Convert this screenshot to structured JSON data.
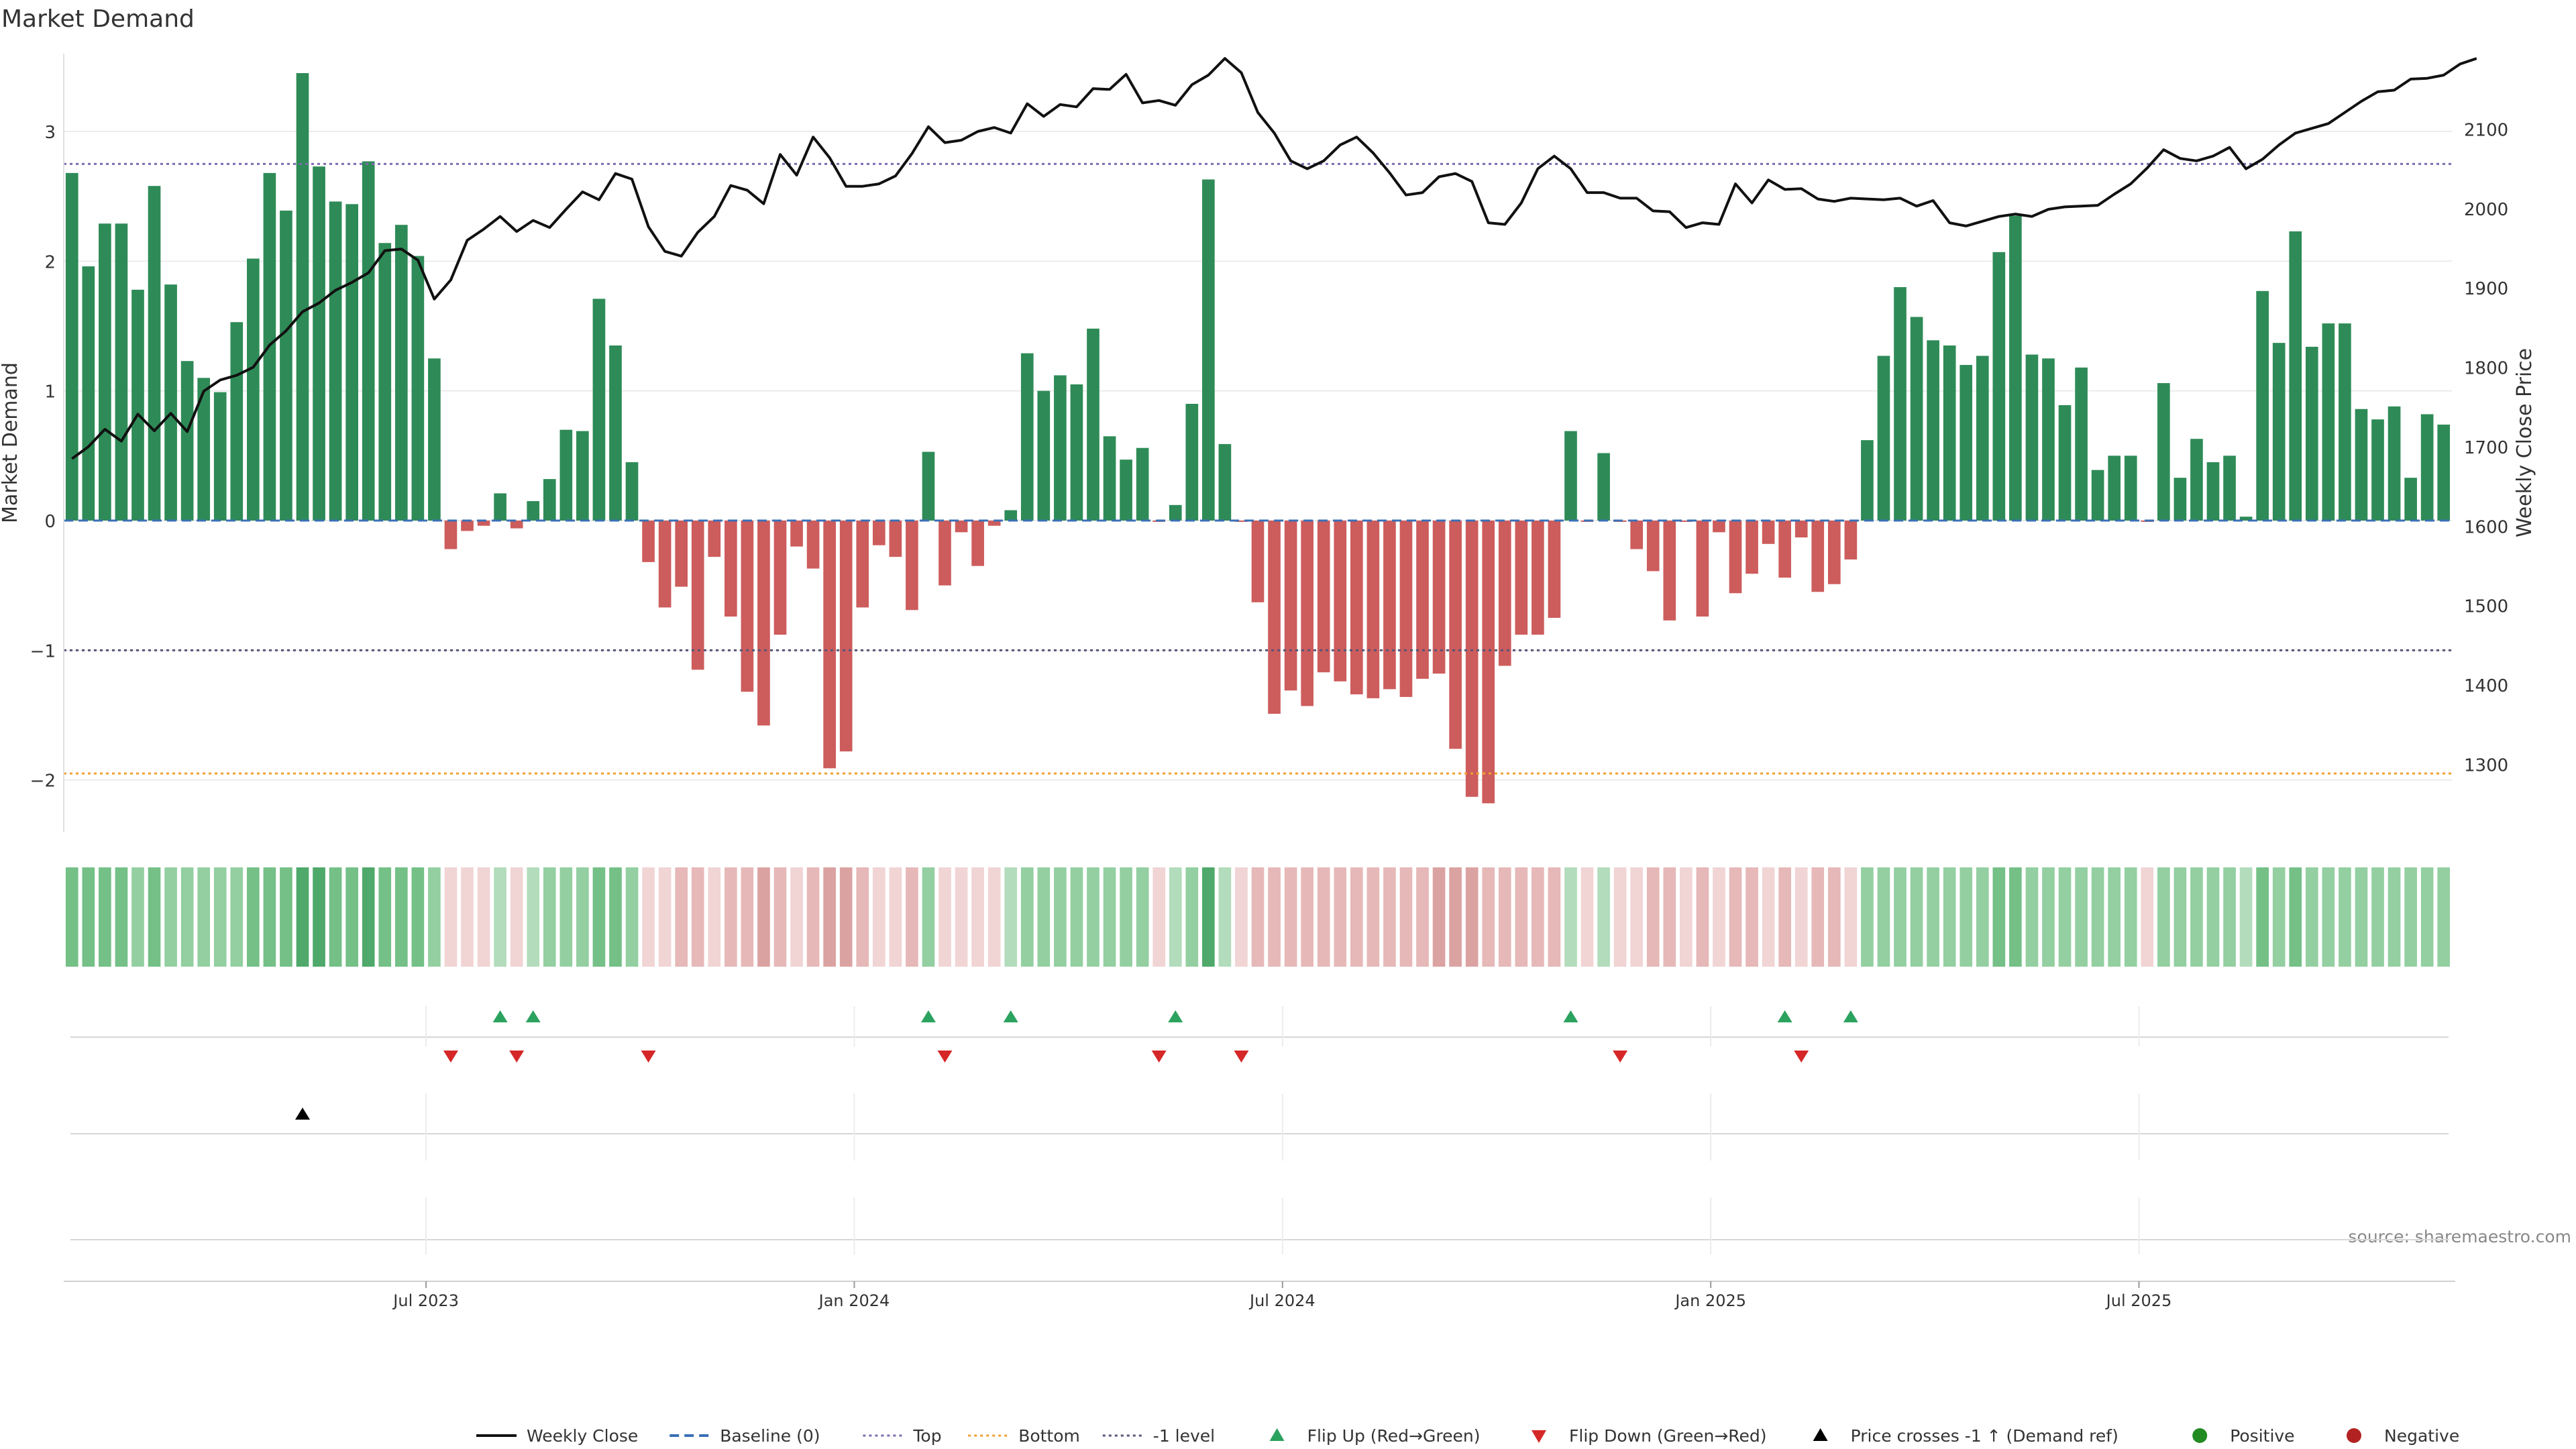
{
  "title": "Market Demand",
  "source": "source: sharemaestro.com",
  "colors": {
    "positive": "#2e8b57",
    "negative": "#cd5c5c",
    "close": "#111111",
    "baseline": "#3b6fb6",
    "top": "#7d6bb0",
    "bottom": "#f0a030",
    "minus1": "#555577",
    "flip_up": "#2ca25f",
    "flip_down": "#d62728",
    "cross": "#000000",
    "pos_dot": "#228b22",
    "neg_dot": "#b22222"
  },
  "chart_data": {
    "type": "bar",
    "ylabel_left": "Market Demand",
    "ylabel_right": "Weekly Close Price",
    "ylim_left": [
      -2.4,
      3.6
    ],
    "ylim_right": [
      1215,
      2195
    ],
    "yticks_left": [
      3,
      2,
      1,
      0,
      -1,
      -2
    ],
    "ytick_labels_left": [
      "3",
      "2",
      "1",
      "0",
      "−1",
      "−2"
    ],
    "yticks_right": [
      2100,
      2000,
      1900,
      1800,
      1700,
      1600,
      1500,
      1400,
      1300
    ],
    "ytick_labels_right": [
      "2100",
      "2000",
      "1900",
      "1800",
      "1700",
      "1600",
      "1500",
      "1400",
      "1300"
    ],
    "xtick_labels": [
      "Jul 2023",
      "Jan 2024",
      "Jul 2024",
      "Jan 2025",
      "Jul 2025"
    ],
    "xtick_week_index": [
      22,
      48,
      74,
      100,
      126
    ],
    "levels": {
      "top": 2.75,
      "bottom": -1.95,
      "minus1": -1.0,
      "baseline": 0
    },
    "demand": [
      2.68,
      1.96,
      2.29,
      2.29,
      1.78,
      2.58,
      1.82,
      1.23,
      1.1,
      0.99,
      1.53,
      2.02,
      2.68,
      2.39,
      3.45,
      2.73,
      2.46,
      2.44,
      2.77,
      2.14,
      2.28,
      2.04,
      1.25,
      -0.22,
      -0.08,
      -0.04,
      0.21,
      -0.06,
      0.15,
      0.32,
      0.7,
      0.69,
      1.71,
      1.35,
      0.45,
      -0.32,
      -0.67,
      -0.51,
      -1.15,
      -0.28,
      -0.74,
      -1.32,
      -1.58,
      -0.88,
      -0.2,
      -0.37,
      -1.91,
      -1.78,
      -0.67,
      -0.19,
      -0.28,
      -0.69,
      0.53,
      -0.5,
      -0.09,
      -0.35,
      -0.04,
      0.08,
      1.29,
      1.0,
      1.12,
      1.05,
      1.48,
      0.65,
      0.47,
      0.56,
      -0.01,
      0.12,
      0.9,
      2.63,
      0.59,
      -0.01,
      -0.63,
      -1.49,
      -1.31,
      -1.43,
      -1.17,
      -1.24,
      -1.34,
      -1.37,
      -1.3,
      -1.36,
      -1.22,
      -1.18,
      -1.76,
      -2.13,
      -2.18,
      -1.12,
      -0.88,
      -0.88,
      -0.75,
      0.69,
      -0.01,
      0.52,
      -0.01,
      -0.22,
      -0.39,
      -0.77,
      -0.01,
      -0.74,
      -0.09,
      -0.56,
      -0.41,
      -0.18,
      -0.44,
      -0.13,
      -0.55,
      -0.49,
      -0.3,
      0.62,
      1.27,
      1.8,
      1.57,
      1.39,
      1.35,
      1.2,
      1.27,
      2.07,
      2.35,
      1.28,
      1.25,
      0.89,
      1.18,
      0.39,
      0.5,
      0.5,
      -0.01,
      1.06,
      0.33,
      0.63,
      0.45,
      0.5,
      0.03,
      1.77,
      1.37,
      2.23,
      1.34,
      1.52,
      1.52,
      0.86,
      0.78,
      0.88,
      0.33,
      0.82,
      0.74
    ],
    "close": [
      1685,
      1700,
      1722,
      1707,
      1741,
      1720,
      1742,
      1719,
      1770,
      1784,
      1790,
      1800,
      1828,
      1846,
      1870,
      1881,
      1897,
      1907,
      1919,
      1947,
      1949,
      1935,
      1886,
      1910,
      1960,
      1974,
      1990,
      1971,
      1985,
      1976,
      1999,
      2021,
      2011,
      2044,
      2037,
      1977,
      1946,
      1940,
      1970,
      1990,
      2029,
      2023,
      2006,
      2068,
      2042,
      2090,
      2064,
      2028,
      2028,
      2031,
      2041,
      2069,
      2103,
      2083,
      2086,
      2097,
      2102,
      2095,
      2132,
      2116,
      2131,
      2128,
      2151,
      2150,
      2169,
      2133,
      2136,
      2130,
      2156,
      2168,
      2189,
      2171,
      2121,
      2095,
      2060,
      2050,
      2060,
      2080,
      2090,
      2070,
      2045,
      2017,
      2020,
      2040,
      2044,
      2034,
      1982,
      1980,
      2007,
      2050,
      2066,
      2050,
      2020,
      2020,
      2013,
      2013,
      1997,
      1996,
      1976,
      1982,
      1980,
      2031,
      2007,
      2036,
      2024,
      2025,
      2012,
      2009,
      2013,
      2012,
      2011,
      2013,
      2003,
      2010,
      1982,
      1978,
      1984,
      1990,
      1993,
      1990,
      1999,
      2002,
      2003,
      2004,
      2018,
      2031,
      2051,
      2074,
      2063,
      2060,
      2066,
      2077,
      2050,
      2062,
      2080,
      2095,
      2101,
      2107,
      2121,
      2135,
      2147,
      2149,
      2163,
      2164,
      2168,
      2182,
      2189
    ],
    "heat_strength": [
      2,
      2,
      2,
      2,
      1,
      2,
      1,
      1,
      1,
      1,
      1,
      2,
      2,
      2,
      3,
      3,
      2,
      2,
      3,
      2,
      2,
      2,
      1,
      0,
      0,
      0,
      0,
      0,
      0,
      1,
      1,
      1,
      2,
      2,
      1,
      0,
      0,
      1,
      1,
      0,
      1,
      1,
      2,
      1,
      0,
      1,
      2,
      2,
      1,
      0,
      0,
      1,
      1,
      0,
      0,
      0,
      0,
      0,
      1,
      1,
      1,
      1,
      1,
      1,
      1,
      1,
      0,
      0,
      1,
      3,
      0,
      0,
      1,
      1,
      1,
      1,
      1,
      1,
      1,
      1,
      1,
      1,
      1,
      2,
      2,
      2,
      1,
      1,
      1,
      1,
      1,
      0,
      0,
      0,
      0,
      0,
      1,
      1,
      0,
      1,
      0,
      1,
      1,
      0,
      1,
      0,
      1,
      1,
      0,
      1,
      1,
      1,
      1,
      1,
      1,
      1,
      1,
      2,
      2,
      1,
      1,
      1,
      1,
      1,
      1,
      1,
      0,
      1,
      1,
      1,
      1,
      1,
      0,
      2,
      1,
      2,
      1,
      1,
      1,
      1,
      1,
      1,
      1,
      1,
      1
    ],
    "flip_up_idx": [
      26,
      28,
      52,
      57,
      67,
      91,
      104,
      108
    ],
    "flip_down_idx": [
      23,
      27,
      35,
      53,
      66,
      71,
      94,
      105
    ],
    "cross_idx": [
      14
    ],
    "series": [
      {
        "name": "Weekly Close",
        "kind": "line"
      },
      {
        "name": "Baseline (0)",
        "kind": "dashed"
      },
      {
        "name": "Top",
        "kind": "dotted"
      },
      {
        "name": "Bottom",
        "kind": "dotted"
      },
      {
        "name": "-1 level",
        "kind": "dotted"
      },
      {
        "name": "Flip Up (Red→Green)",
        "kind": "tri-up"
      },
      {
        "name": "Flip Down (Green→Red)",
        "kind": "tri-down"
      },
      {
        "name": "Price crosses -1 ↑ (Demand ref)",
        "kind": "tri-up-black"
      },
      {
        "name": "Positive",
        "kind": "dot"
      },
      {
        "name": "Negative",
        "kind": "dot"
      }
    ],
    "legend_position": "bottom-center",
    "grid": true
  }
}
